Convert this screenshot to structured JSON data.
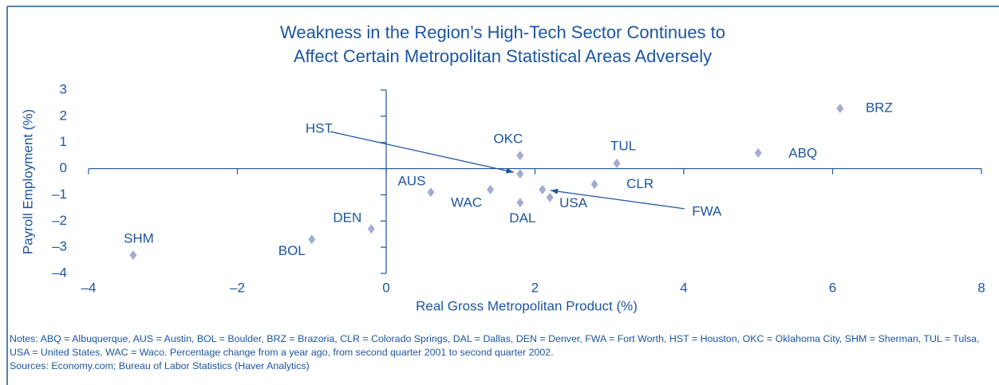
{
  "chart_data": {
    "type": "scatter",
    "title": [
      "Weakness in the Region’s High-Tech Sector Continues to",
      "Affect Certain Metropolitan Statistical Areas Adversely"
    ],
    "x_label": "Real Gross Metropolitan Product (%)",
    "y_label": "Payroll Employment (%)",
    "labels": [
      "BRZ",
      "ABQ",
      "TUL",
      "OKC",
      "HST",
      "CLR",
      "FWA",
      "USA",
      "DAL",
      "WAC",
      "AUS",
      "DEN",
      "BOL",
      "SHM"
    ],
    "x": [
      6.1,
      5.0,
      3.1,
      1.8,
      1.8,
      2.8,
      2.1,
      2.2,
      1.8,
      1.4,
      0.6,
      -0.2,
      -1.0,
      -3.4
    ],
    "values": [
      2.3,
      0.6,
      0.2,
      0.5,
      -0.2,
      -0.6,
      -0.8,
      -1.1,
      -1.3,
      -0.8,
      -0.9,
      -2.3,
      -2.7,
      -3.3
    ],
    "color": "#a3acd0",
    "xlim": [
      -4,
      8
    ],
    "ylim": [
      -4,
      3
    ],
    "xticks": [
      {
        "value": -4,
        "label": "–4"
      },
      {
        "value": -2,
        "label": "–2"
      },
      0,
      2,
      4,
      6,
      8
    ],
    "yticks": [
      3,
      2,
      1,
      0,
      {
        "value": -1,
        "label": "–1"
      },
      {
        "value": -2,
        "label": "–2"
      },
      {
        "value": -3,
        "label": "–3"
      },
      {
        "value": -4,
        "label": "–4"
      }
    ],
    "notes": "Notes: ABQ = Albuquerque, AUS = Austin, BOL = Boulder, BRZ = Brazoria, CLR = Colorado Springs, DAL = Dallas, DEN = Denver, FWA = Fort Worth, HST = Houston, OKC = Oklahoma City, SHM = Sherman, TUL = Tulsa, USA = United States, WAC = Waco. Percentage change from a year ago, from second quarter 2001 to second quarter 2002.",
    "sources": "Sources: Economy.com; Bureau of Labor Statistics (Haver Analytics)"
  }
}
